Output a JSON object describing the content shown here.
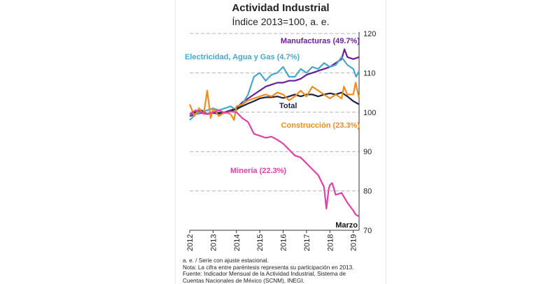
{
  "chart_data": {
    "type": "line",
    "title": "Actividad Industrial",
    "subtitle": "Índice 2013=100, a. e.",
    "ylim": [
      70,
      120
    ],
    "y_ticks": [
      "70",
      "80",
      "90",
      "100",
      "110",
      "120"
    ],
    "x_ticks": [
      "2012",
      "2013",
      "2014",
      "2015",
      "2016",
      "2017",
      "2018",
      "2019"
    ],
    "x_start": 2012.0,
    "x_end": 2019.25,
    "grid": "dashed horizontal",
    "end_annotation": "Marzo",
    "series": [
      {
        "name": "Manufacturas (49.7%)",
        "color": "#6a1f9a",
        "points": [
          [
            2012.0,
            99.0
          ],
          [
            2012.25,
            99.5
          ],
          [
            2012.5,
            99.8
          ],
          [
            2012.75,
            99.5
          ],
          [
            2013.0,
            99.8
          ],
          [
            2013.25,
            99.6
          ],
          [
            2013.5,
            100.0
          ],
          [
            2013.75,
            100.5
          ],
          [
            2014.0,
            101.0
          ],
          [
            2014.25,
            102.5
          ],
          [
            2014.5,
            103.5
          ],
          [
            2014.75,
            104.5
          ],
          [
            2015.0,
            105.5
          ],
          [
            2015.25,
            106.5
          ],
          [
            2015.5,
            107.0
          ],
          [
            2015.75,
            107.5
          ],
          [
            2016.0,
            107.5
          ],
          [
            2016.25,
            108.0
          ],
          [
            2016.5,
            108.0
          ],
          [
            2016.75,
            108.5
          ],
          [
            2017.0,
            109.5
          ],
          [
            2017.25,
            110.0
          ],
          [
            2017.5,
            110.5
          ],
          [
            2017.75,
            111.0
          ],
          [
            2018.0,
            111.5
          ],
          [
            2018.25,
            112.5
          ],
          [
            2018.5,
            113.5
          ],
          [
            2018.625,
            116.0
          ],
          [
            2018.75,
            114.0
          ],
          [
            2019.0,
            113.5
          ],
          [
            2019.25,
            114.0
          ]
        ]
      },
      {
        "name": "Electricidad, Agua y Gas (4.7%)",
        "color": "#4aa7cc",
        "points": [
          [
            2012.0,
            98.0
          ],
          [
            2012.25,
            99.5
          ],
          [
            2012.5,
            100.0
          ],
          [
            2012.75,
            100.5
          ],
          [
            2013.0,
            101.0
          ],
          [
            2013.25,
            100.5
          ],
          [
            2013.5,
            101.0
          ],
          [
            2013.75,
            101.5
          ],
          [
            2014.0,
            100.5
          ],
          [
            2014.25,
            102.0
          ],
          [
            2014.5,
            104.5
          ],
          [
            2014.75,
            109.0
          ],
          [
            2015.0,
            110.0
          ],
          [
            2015.25,
            108.0
          ],
          [
            2015.5,
            109.5
          ],
          [
            2015.75,
            110.0
          ],
          [
            2016.0,
            111.5
          ],
          [
            2016.25,
            109.0
          ],
          [
            2016.5,
            109.0
          ],
          [
            2016.75,
            111.0
          ],
          [
            2017.0,
            110.0
          ],
          [
            2017.25,
            111.5
          ],
          [
            2017.5,
            111.0
          ],
          [
            2017.75,
            112.5
          ],
          [
            2018.0,
            111.5
          ],
          [
            2018.25,
            112.0
          ],
          [
            2018.5,
            114.0
          ],
          [
            2018.75,
            112.0
          ],
          [
            2019.0,
            111.0
          ],
          [
            2019.125,
            109.0
          ],
          [
            2019.25,
            110.5
          ]
        ]
      },
      {
        "name": "Total",
        "color": "#1c2340",
        "points": [
          [
            2012.0,
            99.5
          ],
          [
            2012.25,
            100.0
          ],
          [
            2012.5,
            100.5
          ],
          [
            2012.75,
            99.5
          ],
          [
            2013.0,
            100.0
          ],
          [
            2013.25,
            99.8
          ],
          [
            2013.5,
            100.0
          ],
          [
            2013.75,
            100.3
          ],
          [
            2014.0,
            100.8
          ],
          [
            2014.25,
            101.5
          ],
          [
            2014.5,
            102.2
          ],
          [
            2014.75,
            102.8
          ],
          [
            2015.0,
            103.5
          ],
          [
            2015.25,
            103.8
          ],
          [
            2015.5,
            103.8
          ],
          [
            2015.75,
            104.0
          ],
          [
            2016.0,
            103.6
          ],
          [
            2016.25,
            104.0
          ],
          [
            2016.5,
            104.5
          ],
          [
            2016.75,
            104.0
          ],
          [
            2017.0,
            104.5
          ],
          [
            2017.25,
            104.5
          ],
          [
            2017.5,
            104.0
          ],
          [
            2017.75,
            104.5
          ],
          [
            2018.0,
            104.8
          ],
          [
            2018.25,
            104.5
          ],
          [
            2018.5,
            105.0
          ],
          [
            2018.75,
            104.0
          ],
          [
            2019.0,
            102.8
          ],
          [
            2019.25,
            102.0
          ]
        ]
      },
      {
        "name": "Construcción (23.3%)",
        "color": "#f08c1e",
        "points": [
          [
            2012.0,
            102.0
          ],
          [
            2012.2,
            99.0
          ],
          [
            2012.4,
            101.0
          ],
          [
            2012.6,
            99.5
          ],
          [
            2012.75,
            105.5
          ],
          [
            2012.9,
            98.5
          ],
          [
            2013.0,
            101.0
          ],
          [
            2013.25,
            99.0
          ],
          [
            2013.5,
            100.0
          ],
          [
            2013.75,
            99.5
          ],
          [
            2013.9,
            98.0
          ],
          [
            2014.0,
            101.5
          ],
          [
            2014.25,
            102.0
          ],
          [
            2014.5,
            103.0
          ],
          [
            2014.75,
            103.5
          ],
          [
            2015.0,
            104.0
          ],
          [
            2015.25,
            104.5
          ],
          [
            2015.5,
            104.0
          ],
          [
            2015.75,
            105.0
          ],
          [
            2016.0,
            104.5
          ],
          [
            2016.25,
            103.0
          ],
          [
            2016.5,
            104.0
          ],
          [
            2016.75,
            105.5
          ],
          [
            2017.0,
            104.0
          ],
          [
            2017.25,
            106.5
          ],
          [
            2017.5,
            105.5
          ],
          [
            2017.75,
            104.5
          ],
          [
            2018.0,
            103.5
          ],
          [
            2018.25,
            104.5
          ],
          [
            2018.5,
            103.5
          ],
          [
            2018.6,
            106.5
          ],
          [
            2018.75,
            104.5
          ],
          [
            2019.0,
            104.5
          ],
          [
            2019.1,
            107.5
          ],
          [
            2019.25,
            103.5
          ]
        ]
      },
      {
        "name": "Minería (22.3%)",
        "color": "#e040a8",
        "points": [
          [
            2012.0,
            99.5
          ],
          [
            2012.25,
            100.5
          ],
          [
            2012.5,
            100.0
          ],
          [
            2012.75,
            99.5
          ],
          [
            2013.0,
            100.0
          ],
          [
            2013.25,
            100.5
          ],
          [
            2013.5,
            99.8
          ],
          [
            2013.75,
            100.2
          ],
          [
            2014.0,
            100.0
          ],
          [
            2014.25,
            98.5
          ],
          [
            2014.5,
            97.5
          ],
          [
            2014.75,
            94.5
          ],
          [
            2015.0,
            94.0
          ],
          [
            2015.25,
            93.5
          ],
          [
            2015.5,
            93.8
          ],
          [
            2015.75,
            93.0
          ],
          [
            2016.0,
            92.0
          ],
          [
            2016.25,
            90.5
          ],
          [
            2016.5,
            89.0
          ],
          [
            2016.75,
            88.5
          ],
          [
            2017.0,
            87.0
          ],
          [
            2017.25,
            85.5
          ],
          [
            2017.5,
            84.0
          ],
          [
            2017.75,
            81.0
          ],
          [
            2017.85,
            75.5
          ],
          [
            2017.95,
            80.5
          ],
          [
            2018.0,
            81.5
          ],
          [
            2018.1,
            82.0
          ],
          [
            2018.25,
            79.0
          ],
          [
            2018.5,
            79.5
          ],
          [
            2018.75,
            77.0
          ],
          [
            2019.0,
            75.0
          ],
          [
            2019.1,
            74.0
          ],
          [
            2019.25,
            73.5
          ]
        ]
      }
    ]
  },
  "notes": [
    "a. e. / Serie con ajuste estacional.",
    "Nota: La cifra entre paréntesis representa su participación en 2013.",
    "Fuente: Indicador Mensual de la Actividad Industrial, Sistema de",
    "Cuentas Nacionales de México (SCNM), INEGI."
  ]
}
